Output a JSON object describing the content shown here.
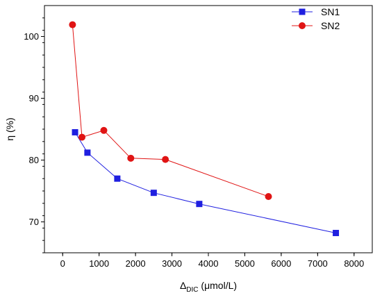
{
  "chart_data": {
    "type": "line",
    "xlabel": "Δ",
    "xlabel_sub": "DIC",
    "xlabel_unit": " (μmol/L)",
    "ylabel": "η (%)",
    "xlim": [
      -500,
      8500
    ],
    "ylim": [
      65,
      105
    ],
    "x_ticks": [
      0,
      1000,
      2000,
      3000,
      4000,
      5000,
      6000,
      7000,
      8000
    ],
    "x_tick_labels": [
      "0",
      "1000",
      "2000",
      "3000",
      "4000",
      "5000",
      "6000",
      "7000",
      "8000"
    ],
    "y_ticks": [
      70,
      80,
      90,
      100
    ],
    "y_tick_labels": [
      "70",
      "80",
      "90",
      "100"
    ],
    "grid": false,
    "legend_position": "top-right",
    "series": [
      {
        "name": "SN1",
        "marker": "square",
        "color": "#1f1fe0",
        "x": [
          340,
          680,
          1500,
          2500,
          3750,
          7500
        ],
        "y": [
          84.5,
          81.2,
          77.0,
          74.7,
          72.9,
          68.2
        ]
      },
      {
        "name": "SN2",
        "marker": "circle",
        "color": "#e01414",
        "x": [
          270,
          530,
          1130,
          1870,
          2820,
          5650
        ],
        "y": [
          101.9,
          83.7,
          84.8,
          80.3,
          80.1,
          74.1
        ]
      }
    ]
  }
}
